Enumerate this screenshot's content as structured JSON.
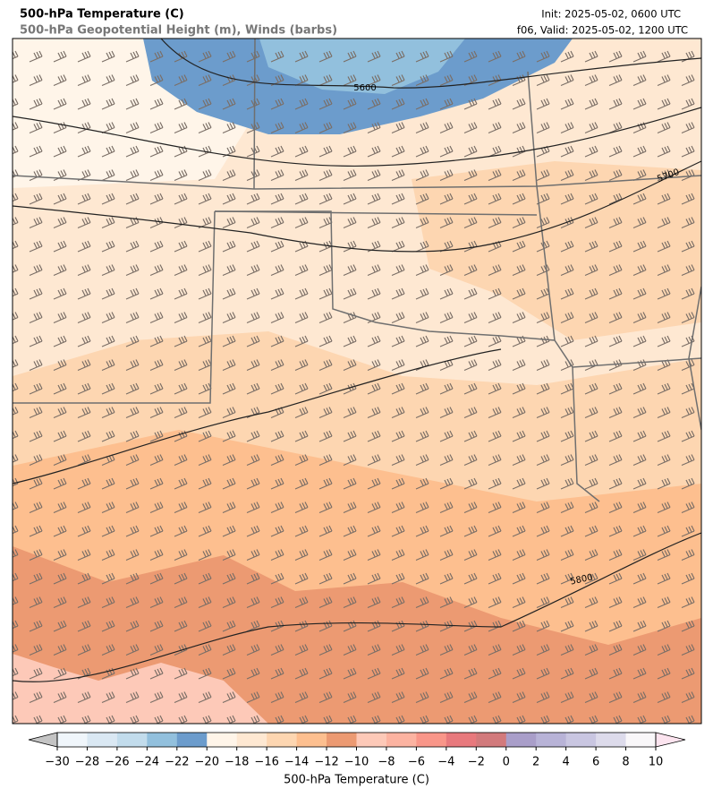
{
  "header": {
    "title": "500-hPa Temperature (C)",
    "subtitle": "500-hPa Geopotential Height (m), Winds (barbs)",
    "init": "Init: 2025-05-02, 0600 UTC",
    "valid": "f06, Valid: 2025-05-02, 1200 UTC"
  },
  "map": {
    "contour_labels": [
      5600,
      5700,
      5800
    ]
  },
  "colorbar": {
    "label": "500-hPa Temperature (C)",
    "under_color": "#c4c4c4",
    "over_color": "#fce4ef",
    "ticks": [
      {
        "value": -30,
        "label": "−30"
      },
      {
        "value": -28,
        "label": "−28"
      },
      {
        "value": -26,
        "label": "−26"
      },
      {
        "value": -24,
        "label": "−24"
      },
      {
        "value": -22,
        "label": "−22"
      },
      {
        "value": -20,
        "label": "−20"
      },
      {
        "value": -18,
        "label": "−18"
      },
      {
        "value": -16,
        "label": "−16"
      },
      {
        "value": -14,
        "label": "−14"
      },
      {
        "value": -12,
        "label": "−12"
      },
      {
        "value": -10,
        "label": "−10"
      },
      {
        "value": -8,
        "label": "−8"
      },
      {
        "value": -6,
        "label": "−6"
      },
      {
        "value": -4,
        "label": "−4"
      },
      {
        "value": -2,
        "label": "−2"
      },
      0,
      2,
      4,
      6,
      8,
      10
    ],
    "colors": [
      "#f0f6fb",
      "#dae8f3",
      "#c2dcec",
      "#92c0dd",
      "#6c9ccc",
      "#fff5e9",
      "#fee8d2",
      "#fdd6b1",
      "#fdbf8f",
      "#ec9a72",
      "#fdc9b8",
      "#fcb3a1",
      "#f99689",
      "#e8797d",
      "#d27a7c",
      "#a99ec9",
      "#b8b3d7",
      "#c9c6e1",
      "#dddbeb",
      "#f9f7f9"
    ]
  }
}
